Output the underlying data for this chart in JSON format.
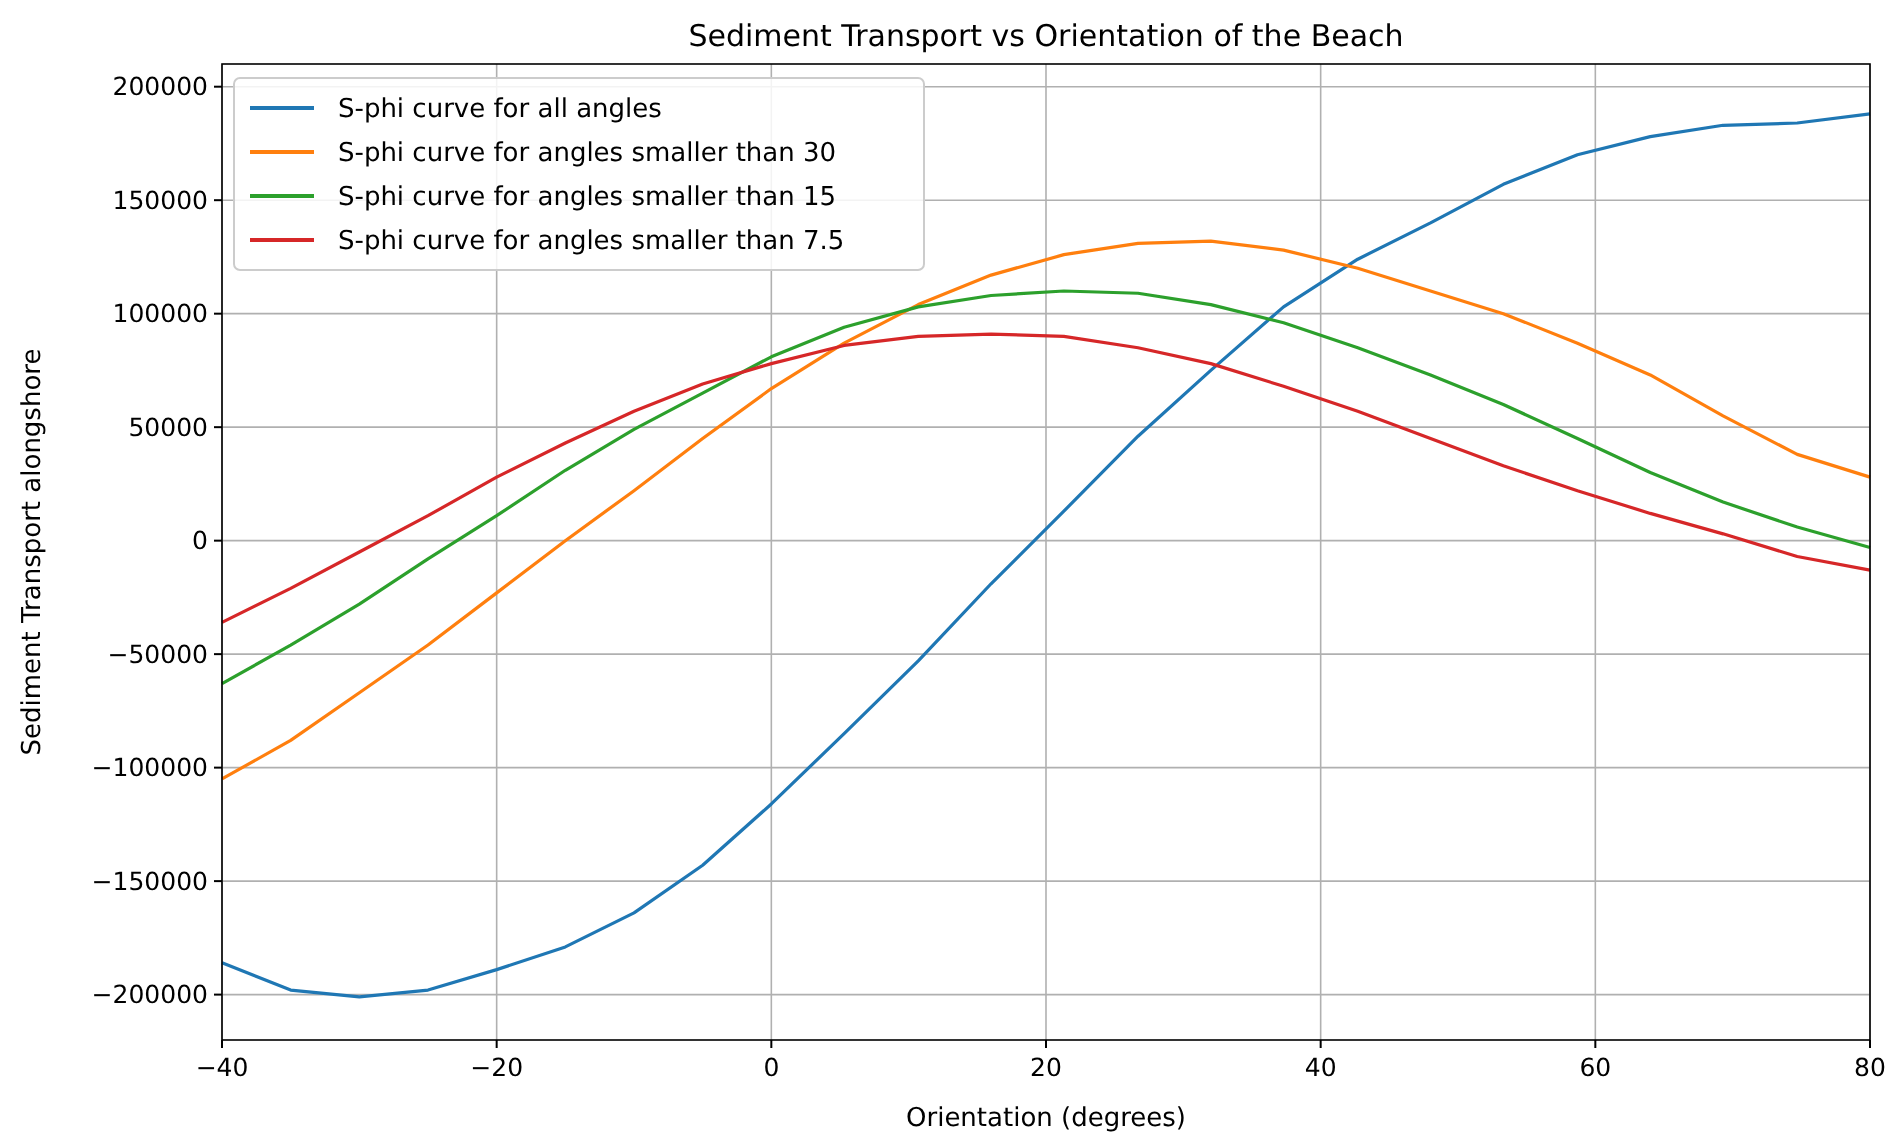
{
  "chart_data": {
    "type": "line",
    "title": "Sediment Transport vs Orientation of the Beach",
    "xlabel": "Orientation (degrees)",
    "ylabel": "Sediment Transport alongshore",
    "x": [
      -40,
      -35,
      -30,
      -25,
      -20,
      -15,
      -10,
      -5,
      0,
      5.3,
      10.7,
      16,
      21.3,
      26.7,
      32,
      37.3,
      42.7,
      48,
      53.3,
      58.7,
      64,
      69.3,
      74.7,
      80
    ],
    "series": [
      {
        "name": "S-phi curve for all angles",
        "color": "#1f77b4",
        "values": [
          -186000,
          -198000,
          -201000,
          -198000,
          -189000,
          -179000,
          -164000,
          -143000,
          -116000,
          -85000,
          -53000,
          -19000,
          13000,
          46000,
          75000,
          103000,
          124000,
          140000,
          157000,
          170000,
          178000,
          183000,
          184000,
          188000
        ]
      },
      {
        "name": "S-phi curve for angles smaller than 30",
        "color": "#ff7f0e",
        "values": [
          -105000,
          -88000,
          -67000,
          -46000,
          -23000,
          0,
          22000,
          45000,
          67000,
          87000,
          104000,
          117000,
          126000,
          131000,
          132000,
          128000,
          120000,
          110000,
          100000,
          87000,
          73000,
          55000,
          38000,
          28000
        ]
      },
      {
        "name": "S-phi curve for angles smaller than 15",
        "color": "#2ca02c",
        "values": [
          -63000,
          -46000,
          -28000,
          -8000,
          11000,
          31000,
          49000,
          65000,
          81000,
          94000,
          103000,
          108000,
          110000,
          109000,
          104000,
          96000,
          85000,
          73000,
          60000,
          45000,
          30000,
          17000,
          6000,
          -3000
        ]
      },
      {
        "name": "S-phi curve for angles smaller than 7.5",
        "color": "#d62728",
        "values": [
          -36000,
          -21000,
          -5000,
          11000,
          28000,
          43000,
          57000,
          69000,
          78000,
          86000,
          90000,
          91000,
          90000,
          85000,
          78000,
          68000,
          57000,
          45000,
          33000,
          22000,
          12000,
          3000,
          -7000,
          -13000
        ]
      }
    ],
    "xlim": [
      -40,
      80
    ],
    "xticks": [
      {
        "value": -40,
        "label": "−40"
      },
      {
        "value": -20,
        "label": "−20"
      },
      0,
      20,
      40,
      60,
      80
    ],
    "ylim": [
      -220000,
      210000
    ],
    "yticks": [
      {
        "value": -200000,
        "label": "−200000"
      },
      {
        "value": -150000,
        "label": "−150000"
      },
      {
        "value": -100000,
        "label": "−100000"
      },
      {
        "value": -50000,
        "label": "−50000"
      },
      0,
      50000,
      100000,
      150000,
      200000
    ],
    "grid": true,
    "legend": "top left",
    "marker": "none",
    "line_style": "solid"
  }
}
